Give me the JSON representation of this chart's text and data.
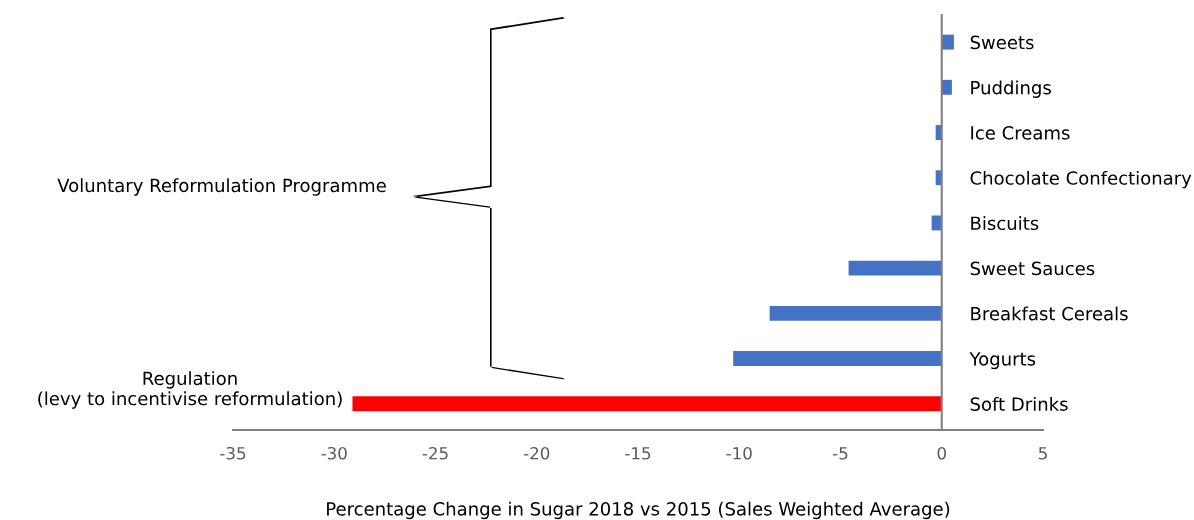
{
  "chart_data": {
    "type": "bar",
    "orientation": "horizontal",
    "categories": [
      "Sweets",
      "Puddings",
      "Ice Creams",
      "Chocolate Confectionary",
      "Biscuits",
      "Sweet Sauces",
      "Breakfast Cereals",
      "Yogurts",
      "Soft Drinks"
    ],
    "values": [
      0.6,
      0.5,
      -0.3,
      -0.3,
      -0.5,
      -4.6,
      -8.5,
      -10.3,
      -29.1
    ],
    "colors": [
      "#4472c4",
      "#4472c4",
      "#4472c4",
      "#4472c4",
      "#4472c4",
      "#4472c4",
      "#4472c4",
      "#4472c4",
      "#ff0000"
    ],
    "xlim": [
      -35,
      5
    ],
    "xticks": [
      -35,
      -30,
      -25,
      -20,
      -15,
      -10,
      -5,
      0,
      5
    ],
    "xlabel": "Percentage Change in Sugar 2018 vs 2015 (Sales Weighted Average)",
    "annotations": [
      "Voluntary Reformulation Programme",
      "Regulation\n(levy to incentivise reformulation)"
    ],
    "grid": false,
    "legend": false
  }
}
